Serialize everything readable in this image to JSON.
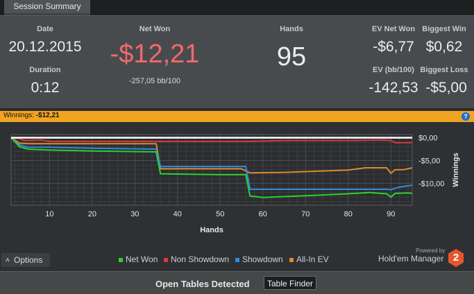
{
  "tab": {
    "label": "Session Summary"
  },
  "summary": {
    "date_label": "Date",
    "date": "20.12.2015",
    "duration_label": "Duration",
    "duration": "0:12",
    "net_won_label": "Net Won",
    "net_won": "-$12,21",
    "net_won_bb": "-257,05 bb/100",
    "hands_label": "Hands",
    "hands": "95",
    "ev_net_won_label": "EV Net Won",
    "ev_net_won": "-$6,77",
    "biggest_win_label": "Biggest Win",
    "biggest_win": "$0,62",
    "ev_bb_label": "EV (bb/100)",
    "ev_bb": "-142,53",
    "biggest_loss_label": "Biggest Loss",
    "biggest_loss": "-$5,00"
  },
  "winnings_bar": {
    "label": "Winnings:",
    "value": "-$12,21",
    "help": "?"
  },
  "colors": {
    "net_won": "#2ed12e",
    "non_showdown": "#d9393c",
    "showdown": "#2f8ce0",
    "all_in_ev": "#e08a2c",
    "net_won_text": "#f06a6a",
    "accent": "#f1a422"
  },
  "chart_data": {
    "type": "line",
    "xlabel": "Hands",
    "ylabel": "Winnings",
    "x_ticks": [
      "10",
      "20",
      "30",
      "40",
      "50",
      "60",
      "70",
      "80",
      "90"
    ],
    "y_ticks": [
      "$0,00",
      "-$5,00",
      "-$10,00"
    ],
    "xlim": [
      1,
      95
    ],
    "ylim": [
      -14.8,
      0.7
    ],
    "grid": true,
    "legend_position": "bottom",
    "series": [
      {
        "name": "Non Showdown",
        "color": "#d9393c",
        "points": [
          [
            1,
            0
          ],
          [
            3,
            -0.2
          ],
          [
            4,
            -0.6
          ],
          [
            8,
            -0.5
          ],
          [
            10,
            -0.8
          ],
          [
            20,
            -0.8
          ],
          [
            35,
            -0.8
          ],
          [
            50,
            -0.8
          ],
          [
            57,
            -0.8
          ],
          [
            65,
            -0.6
          ],
          [
            80,
            -0.6
          ],
          [
            88,
            -0.5
          ],
          [
            90,
            -0.6
          ],
          [
            91,
            -1.1
          ],
          [
            95,
            -1.1
          ]
        ]
      },
      {
        "name": "All-In EV",
        "color": "#e08a2c",
        "points": [
          [
            1,
            0
          ],
          [
            3,
            -1.2
          ],
          [
            5,
            -1.3
          ],
          [
            10,
            -1.3
          ],
          [
            20,
            -1.3
          ],
          [
            35,
            -1.3
          ],
          [
            36,
            -6.8
          ],
          [
            55,
            -6.8
          ],
          [
            57,
            -7.7
          ],
          [
            65,
            -7.6
          ],
          [
            80,
            -7.1
          ],
          [
            84,
            -6.6
          ],
          [
            89,
            -6.6
          ],
          [
            90,
            -7.8
          ],
          [
            91,
            -7.0
          ],
          [
            93,
            -7.0
          ],
          [
            95,
            -6.6
          ]
        ]
      },
      {
        "name": "Showdown",
        "color": "#2f8ce0",
        "points": [
          [
            1,
            0
          ],
          [
            3,
            -1.6
          ],
          [
            5,
            -2.1
          ],
          [
            10,
            -2.1
          ],
          [
            20,
            -2.3
          ],
          [
            35,
            -2.5
          ],
          [
            36,
            -6.3
          ],
          [
            56,
            -6.3
          ],
          [
            57,
            -11.3
          ],
          [
            80,
            -11.3
          ],
          [
            89,
            -11.3
          ],
          [
            90,
            -11.4
          ],
          [
            92,
            -10.8
          ],
          [
            95,
            -10.4
          ]
        ]
      },
      {
        "name": "Net Won",
        "color": "#2ed12e",
        "points": [
          [
            1,
            0
          ],
          [
            3,
            -2.0
          ],
          [
            5,
            -2.5
          ],
          [
            10,
            -2.7
          ],
          [
            20,
            -2.9
          ],
          [
            35,
            -3.1
          ],
          [
            36,
            -7.9
          ],
          [
            50,
            -8.1
          ],
          [
            56,
            -8.1
          ],
          [
            57,
            -12.8
          ],
          [
            60,
            -13.1
          ],
          [
            65,
            -12.9
          ],
          [
            70,
            -12.7
          ],
          [
            80,
            -12.3
          ],
          [
            85,
            -12.0
          ],
          [
            89,
            -12.3
          ],
          [
            90,
            -13.0
          ],
          [
            91,
            -12.2
          ],
          [
            94,
            -12.1
          ],
          [
            95,
            -12.2
          ]
        ]
      },
      {
        "name": "",
        "color": "#ffffff",
        "points": [
          [
            1,
            0
          ],
          [
            95,
            0
          ]
        ]
      }
    ]
  },
  "legend": {
    "net_won": "Net Won",
    "non_showdown": "Non Showdown",
    "showdown": "Showdown",
    "all_in_ev": "All-In EV"
  },
  "options_button": {
    "arrow": "˄",
    "label": "Options"
  },
  "brand": {
    "powered_by": "Powered by",
    "name": "Hold'em Manager",
    "logo": "2"
  },
  "footer": {
    "open_tables": "Open Tables Detected",
    "table_finder": "Table Finder"
  }
}
